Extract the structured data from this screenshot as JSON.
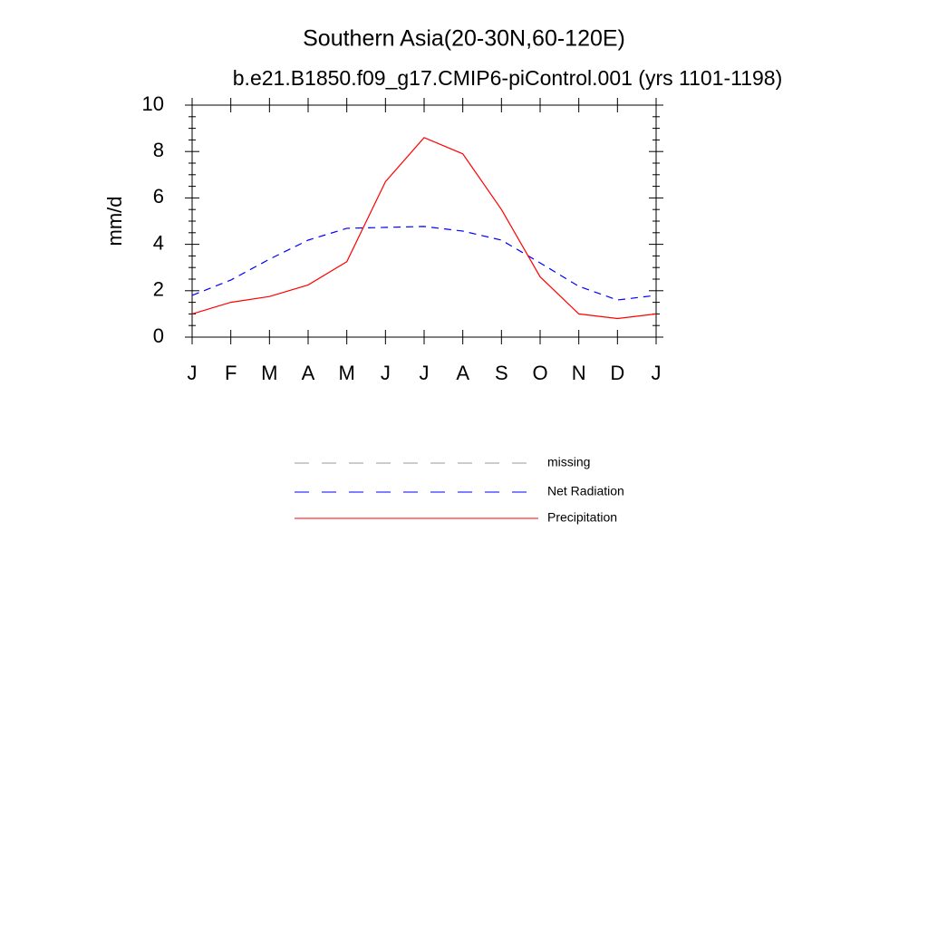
{
  "chart_data": {
    "type": "line",
    "title": "Southern Asia(20-30N,60-120E)",
    "subtitle": "b.e21.B1850.f09_g17.CMIP6-piControl.001 (yrs 1101-1198)",
    "y_label": "mm/d",
    "categories": [
      "J",
      "F",
      "M",
      "A",
      "M",
      "J",
      "J",
      "A",
      "S",
      "O",
      "N",
      "D",
      "J"
    ],
    "ylim": [
      0,
      10
    ],
    "yticks": [
      0,
      2,
      4,
      6,
      8,
      10
    ],
    "series": [
      {
        "name": "missing",
        "color": "#999999",
        "dash": true,
        "values": [
          null,
          null,
          null,
          null,
          null,
          null,
          null,
          null,
          null,
          null,
          null,
          null,
          null
        ]
      },
      {
        "name": "Net Radiation",
        "color": "#0000ff",
        "dash": true,
        "values": [
          1.8,
          2.46,
          3.36,
          4.18,
          4.69,
          4.73,
          4.77,
          4.57,
          4.18,
          3.2,
          2.19,
          1.6,
          1.8
        ]
      },
      {
        "name": "Precipitation",
        "color": "#ff0000",
        "dash": false,
        "values": [
          1.0,
          1.5,
          1.75,
          2.25,
          3.25,
          6.7,
          8.6,
          7.9,
          5.5,
          2.6,
          1.0,
          0.8,
          1.0
        ]
      }
    ]
  }
}
